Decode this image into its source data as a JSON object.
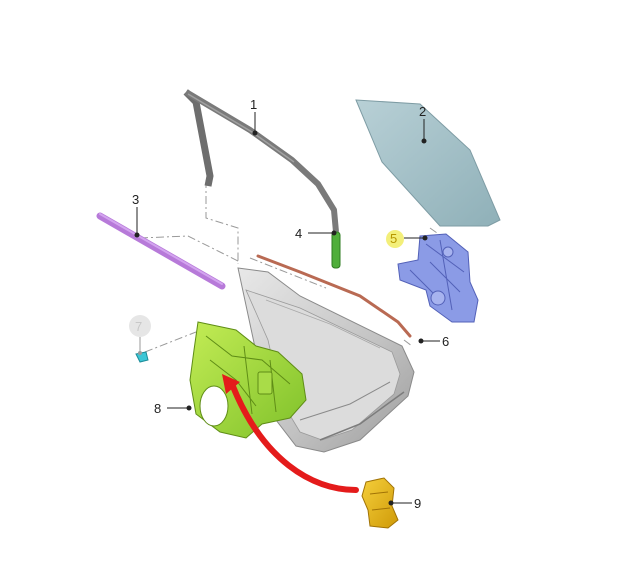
{
  "callouts": [
    {
      "id": "1",
      "label": "1",
      "state": "normal"
    },
    {
      "id": "2",
      "label": "2",
      "state": "normal"
    },
    {
      "id": "3",
      "label": "3",
      "state": "normal"
    },
    {
      "id": "4",
      "label": "4",
      "state": "normal"
    },
    {
      "id": "5",
      "label": "5",
      "state": "highlighted"
    },
    {
      "id": "6",
      "label": "6",
      "state": "normal"
    },
    {
      "id": "7",
      "label": "7",
      "state": "dimmed"
    },
    {
      "id": "8",
      "label": "8",
      "state": "normal"
    },
    {
      "id": "9",
      "label": "9",
      "state": "normal"
    }
  ],
  "colors": {
    "glass": "#a9c4cc",
    "weatherstrip_channel": "#6e6e6e",
    "belt_molding": "#b77ad9",
    "rubber_seal_green": "#4fae3a",
    "regulator_blue": "#8b9be6",
    "outer_seal_strip": "#b96a53",
    "clip_cyan": "#3cc6d6",
    "module_carrier": "#9fd63a",
    "actuator_yellow": "#e7b314",
    "arrow_red": "#e41b1b",
    "door_shell": "#c9c9c9",
    "highlight_circle": "#f3ef7a",
    "dimmed_circle": "#e6e6e6"
  }
}
